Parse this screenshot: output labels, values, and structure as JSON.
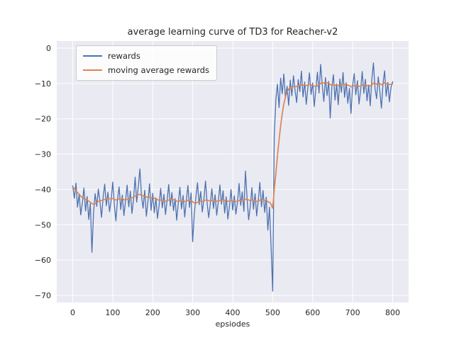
{
  "colors": {
    "figure_background": "#ffffff",
    "axes_background": "#eaeaf2",
    "grid": "#ffffff",
    "text": "#262626",
    "legend_border": "#cccccc",
    "rewards_line": "#4c72b0",
    "moving_average_line": "#dd8452"
  },
  "chart_data": {
    "type": "line",
    "title": "average learning curve of TD3 for Reacher-v2",
    "xlabel": "epsiodes",
    "ylabel": "",
    "grid": true,
    "legend_position": "upper left",
    "xlim": [
      -40,
      840
    ],
    "ylim": [
      -72,
      2
    ],
    "xticks": [
      0,
      100,
      200,
      300,
      400,
      500,
      600,
      700,
      800
    ],
    "yticks": [
      0,
      -10,
      -20,
      -30,
      -40,
      -50,
      -60,
      -70
    ],
    "x": [
      0,
      4,
      8,
      12,
      16,
      20,
      24,
      28,
      32,
      36,
      40,
      44,
      48,
      52,
      56,
      60,
      64,
      68,
      72,
      76,
      80,
      84,
      88,
      92,
      96,
      100,
      104,
      108,
      112,
      116,
      120,
      124,
      128,
      132,
      136,
      140,
      144,
      148,
      152,
      156,
      160,
      164,
      168,
      172,
      176,
      180,
      184,
      188,
      192,
      196,
      200,
      204,
      208,
      212,
      216,
      220,
      224,
      228,
      232,
      236,
      240,
      244,
      248,
      252,
      256,
      260,
      264,
      268,
      272,
      276,
      280,
      284,
      288,
      292,
      296,
      300,
      304,
      308,
      312,
      316,
      320,
      324,
      328,
      332,
      336,
      340,
      344,
      348,
      352,
      356,
      360,
      364,
      368,
      372,
      376,
      380,
      384,
      388,
      392,
      396,
      400,
      404,
      408,
      412,
      416,
      420,
      424,
      428,
      432,
      436,
      440,
      444,
      448,
      452,
      456,
      460,
      464,
      468,
      472,
      476,
      480,
      484,
      488,
      492,
      496,
      500,
      504,
      508,
      512,
      516,
      520,
      524,
      528,
      532,
      536,
      540,
      544,
      548,
      552,
      556,
      560,
      564,
      568,
      572,
      576,
      580,
      584,
      588,
      592,
      596,
      600,
      604,
      608,
      612,
      616,
      620,
      624,
      628,
      632,
      636,
      640,
      644,
      648,
      652,
      656,
      660,
      664,
      668,
      672,
      676,
      680,
      684,
      688,
      692,
      696,
      700,
      704,
      708,
      712,
      716,
      720,
      724,
      728,
      732,
      736,
      740,
      744,
      748,
      752,
      756,
      760,
      764,
      768,
      772,
      776,
      780,
      784,
      788,
      792,
      796,
      800
    ],
    "series": [
      {
        "name": "rewards",
        "color": "#4c72b0",
        "values": [
          -39.0,
          -42.5,
          -38.2,
          -45.0,
          -41.3,
          -47.2,
          -43.8,
          -39.6,
          -46.1,
          -42.0,
          -48.5,
          -44.0,
          -57.8,
          -46.5,
          -41.2,
          -44.8,
          -39.9,
          -43.5,
          -47.9,
          -42.2,
          -38.5,
          -44.6,
          -40.8,
          -46.3,
          -43.1,
          -37.9,
          -44.4,
          -48.9,
          -42.7,
          -39.3,
          -45.7,
          -41.6,
          -47.4,
          -43.3,
          -38.8,
          -44.9,
          -40.5,
          -46.8,
          -42.9,
          -36.5,
          -43.6,
          -39.1,
          -34.2,
          -41.9,
          -45.3,
          -40.2,
          -47.6,
          -43.4,
          -38.4,
          -45.9,
          -41.1,
          -46.6,
          -42.4,
          -48.2,
          -44.5,
          -39.7,
          -45.2,
          -41.4,
          -47.1,
          -43.0,
          -38.6,
          -44.7,
          -40.9,
          -46.0,
          -42.6,
          -48.7,
          -43.9,
          -39.4,
          -45.5,
          -41.7,
          -47.8,
          -43.2,
          -38.9,
          -45.1,
          -41.0,
          -54.8,
          -46.9,
          -42.3,
          -38.1,
          -44.3,
          -40.6,
          -46.4,
          -42.8,
          -37.6,
          -43.7,
          -48.0,
          -44.1,
          -39.8,
          -45.4,
          -41.5,
          -47.3,
          -43.5,
          -38.7,
          -44.2,
          -40.4,
          -46.7,
          -42.1,
          -48.4,
          -44.6,
          -40.0,
          -45.8,
          -41.8,
          -47.0,
          -43.6,
          -38.3,
          -44.5,
          -40.7,
          -46.2,
          -34.8,
          -42.5,
          -48.6,
          -44.8,
          -39.5,
          -45.6,
          -41.2,
          -47.5,
          -43.1,
          -38.0,
          -44.9,
          -40.3,
          -46.5,
          -42.2,
          -51.5,
          -45.0,
          -56.0,
          -68.8,
          -25.0,
          -14.5,
          -10.2,
          -16.8,
          -8.5,
          -12.9,
          -7.3,
          -14.1,
          -10.8,
          -16.2,
          -9.1,
          -13.5,
          -7.8,
          -11.9,
          -15.4,
          -8.9,
          -12.3,
          -6.5,
          -13.8,
          -9.6,
          -15.9,
          -11.2,
          -7.0,
          -13.1,
          -9.9,
          -16.5,
          -11.6,
          -6.8,
          -12.7,
          -4.6,
          -10.5,
          -15.1,
          -8.3,
          -13.4,
          -9.4,
          -19.8,
          -11.0,
          -7.5,
          -14.7,
          -10.1,
          -16.0,
          -8.7,
          -12.5,
          -6.9,
          -13.9,
          -9.8,
          -15.6,
          -11.4,
          -18.5,
          -10.6,
          -7.2,
          -13.2,
          -9.2,
          -15.8,
          -11.8,
          -6.6,
          -12.8,
          -8.8,
          -14.9,
          -10.4,
          -16.3,
          -9.0,
          -4.2,
          -11.5,
          -14.3,
          -8.1,
          -12.1,
          -17.0,
          -10.0,
          -6.4,
          -13.6,
          -9.7,
          -15.2,
          -11.1,
          -9.5
        ]
      },
      {
        "name": "moving average rewards",
        "color": "#dd8452",
        "values": [
          -39.3,
          -39.8,
          -40.3,
          -40.9,
          -41.4,
          -41.9,
          -42.3,
          -42.6,
          -42.8,
          -43.0,
          -43.3,
          -43.6,
          -44.0,
          -44.2,
          -44.0,
          -43.7,
          -43.4,
          -43.2,
          -43.1,
          -43.0,
          -42.8,
          -42.6,
          -42.5,
          -42.6,
          -42.7,
          -42.6,
          -42.8,
          -43.0,
          -42.9,
          -42.7,
          -42.8,
          -42.6,
          -42.9,
          -43.0,
          -42.8,
          -42.7,
          -42.5,
          -42.4,
          -42.2,
          -41.9,
          -41.7,
          -41.5,
          -41.4,
          -41.6,
          -41.8,
          -41.9,
          -42.1,
          -42.3,
          -42.2,
          -42.4,
          -42.3,
          -42.5,
          -42.6,
          -42.9,
          -43.1,
          -43.0,
          -43.2,
          -43.1,
          -43.3,
          -43.2,
          -43.0,
          -42.9,
          -42.8,
          -42.9,
          -43.0,
          -43.3,
          -43.4,
          -43.2,
          -43.3,
          -43.1,
          -43.4,
          -43.3,
          -43.1,
          -43.2,
          -43.0,
          -43.5,
          -43.8,
          -43.9,
          -43.6,
          -43.5,
          -43.3,
          -43.4,
          -43.3,
          -43.0,
          -43.0,
          -43.2,
          -43.3,
          -43.1,
          -43.2,
          -43.1,
          -43.3,
          -43.3,
          -43.1,
          -43.1,
          -42.9,
          -43.1,
          -43.0,
          -43.3,
          -43.4,
          -43.2,
          -43.3,
          -43.2,
          -43.4,
          -43.4,
          -43.1,
          -43.2,
          -43.0,
          -43.2,
          -42.8,
          -42.7,
          -43.0,
          -43.2,
          -43.0,
          -43.2,
          -43.1,
          -43.4,
          -43.3,
          -43.0,
          -43.1,
          -42.9,
          -43.1,
          -43.0,
          -43.5,
          -43.6,
          -44.2,
          -45.3,
          -40.0,
          -35.5,
          -30.5,
          -26.0,
          -22.0,
          -18.5,
          -15.8,
          -13.8,
          -12.4,
          -11.6,
          -11.2,
          -11.0,
          -10.9,
          -10.8,
          -10.9,
          -10.7,
          -10.6,
          -10.4,
          -10.5,
          -10.4,
          -10.6,
          -10.5,
          -10.3,
          -10.4,
          -10.5,
          -10.8,
          -10.9,
          -10.6,
          -10.4,
          -10.0,
          -9.8,
          -9.9,
          -9.7,
          -9.8,
          -9.9,
          -10.3,
          -10.5,
          -10.3,
          -10.5,
          -10.4,
          -10.6,
          -10.4,
          -10.3,
          -10.1,
          -10.3,
          -10.2,
          -10.5,
          -10.6,
          -11.0,
          -10.9,
          -10.6,
          -10.7,
          -10.5,
          -10.8,
          -10.8,
          -10.4,
          -10.5,
          -10.3,
          -10.6,
          -10.5,
          -10.8,
          -10.4,
          -9.9,
          -10.0,
          -10.2,
          -9.9,
          -10.0,
          -10.4,
          -10.2,
          -9.8,
          -10.1,
          -10.0,
          -10.3,
          -10.2,
          -10.1
        ]
      }
    ]
  }
}
